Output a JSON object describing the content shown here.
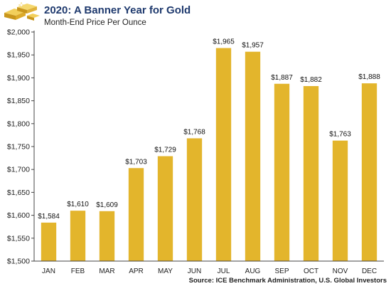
{
  "header": {
    "title": "2020: A Banner Year for Gold",
    "subtitle": "Month-End Price Per Ounce",
    "logo_icon": "gold-bars-icon"
  },
  "source": "Source: ICE Benchmark Administration, U.S. Global Investors",
  "colors": {
    "bar": "#e3b52c",
    "title": "#1f3a6e",
    "axis": "#444444"
  },
  "chart_data": {
    "type": "bar",
    "title": "2020: A Banner Year for Gold",
    "subtitle": "Month-End Price Per Ounce",
    "xlabel": "",
    "ylabel": "",
    "categories": [
      "JAN",
      "FEB",
      "MAR",
      "APR",
      "MAY",
      "JUN",
      "JUL",
      "AUG",
      "SEP",
      "OCT",
      "NOV",
      "DEC"
    ],
    "values": [
      1584,
      1610,
      1609,
      1703,
      1729,
      1768,
      1965,
      1957,
      1887,
      1882,
      1763,
      1888
    ],
    "value_labels": [
      "$1,584",
      "$1,610",
      "$1,609",
      "$1,703",
      "$1,729",
      "$1,768",
      "$1,965",
      "$1,957",
      "$1,887",
      "$1,882",
      "$1,763",
      "$1,888"
    ],
    "ylim": [
      1500,
      2000
    ],
    "yticks": [
      1500,
      1550,
      1600,
      1650,
      1700,
      1750,
      1800,
      1850,
      1900,
      1950,
      2000
    ],
    "ytick_labels": [
      "$1,500",
      "$1,550",
      "$1,600",
      "$1,650",
      "$1,700",
      "$1,750",
      "$1,800",
      "$1,850",
      "$1,900",
      "$1,950",
      "$2,000"
    ],
    "grid": false,
    "legend": "none"
  }
}
